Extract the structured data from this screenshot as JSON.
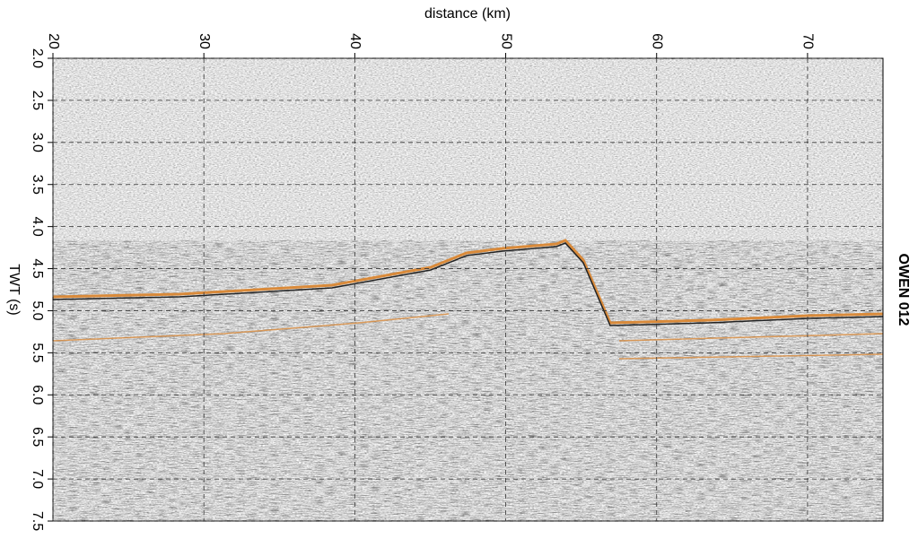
{
  "chart_data": {
    "type": "seismic",
    "title": "OWEN 012",
    "xlabel": "distance (km)",
    "ylabel": "TWT (s)",
    "xlim": [
      20,
      75
    ],
    "ylim": [
      2.0,
      7.5
    ],
    "y_inverted": true,
    "xticks": [
      20,
      30,
      40,
      50,
      60,
      70
    ],
    "yticks": [
      {
        "value": 2,
        "label": "2.0"
      },
      {
        "value": 2.5,
        "label": "2.5"
      },
      {
        "value": 3,
        "label": "3.0"
      },
      {
        "value": 3.5,
        "label": "3.5"
      },
      {
        "value": 4,
        "label": "4.0"
      },
      {
        "value": 4.5,
        "label": "4.5"
      },
      {
        "value": 5,
        "label": "5.0"
      },
      {
        "value": 5.5,
        "label": "5.5"
      },
      {
        "value": 6,
        "label": "6.0"
      },
      {
        "value": 6.5,
        "label": "6.5"
      },
      {
        "value": 7,
        "label": "7.0"
      },
      {
        "value": 7.5,
        "label": "7.5"
      }
    ],
    "grid": true
  }
}
